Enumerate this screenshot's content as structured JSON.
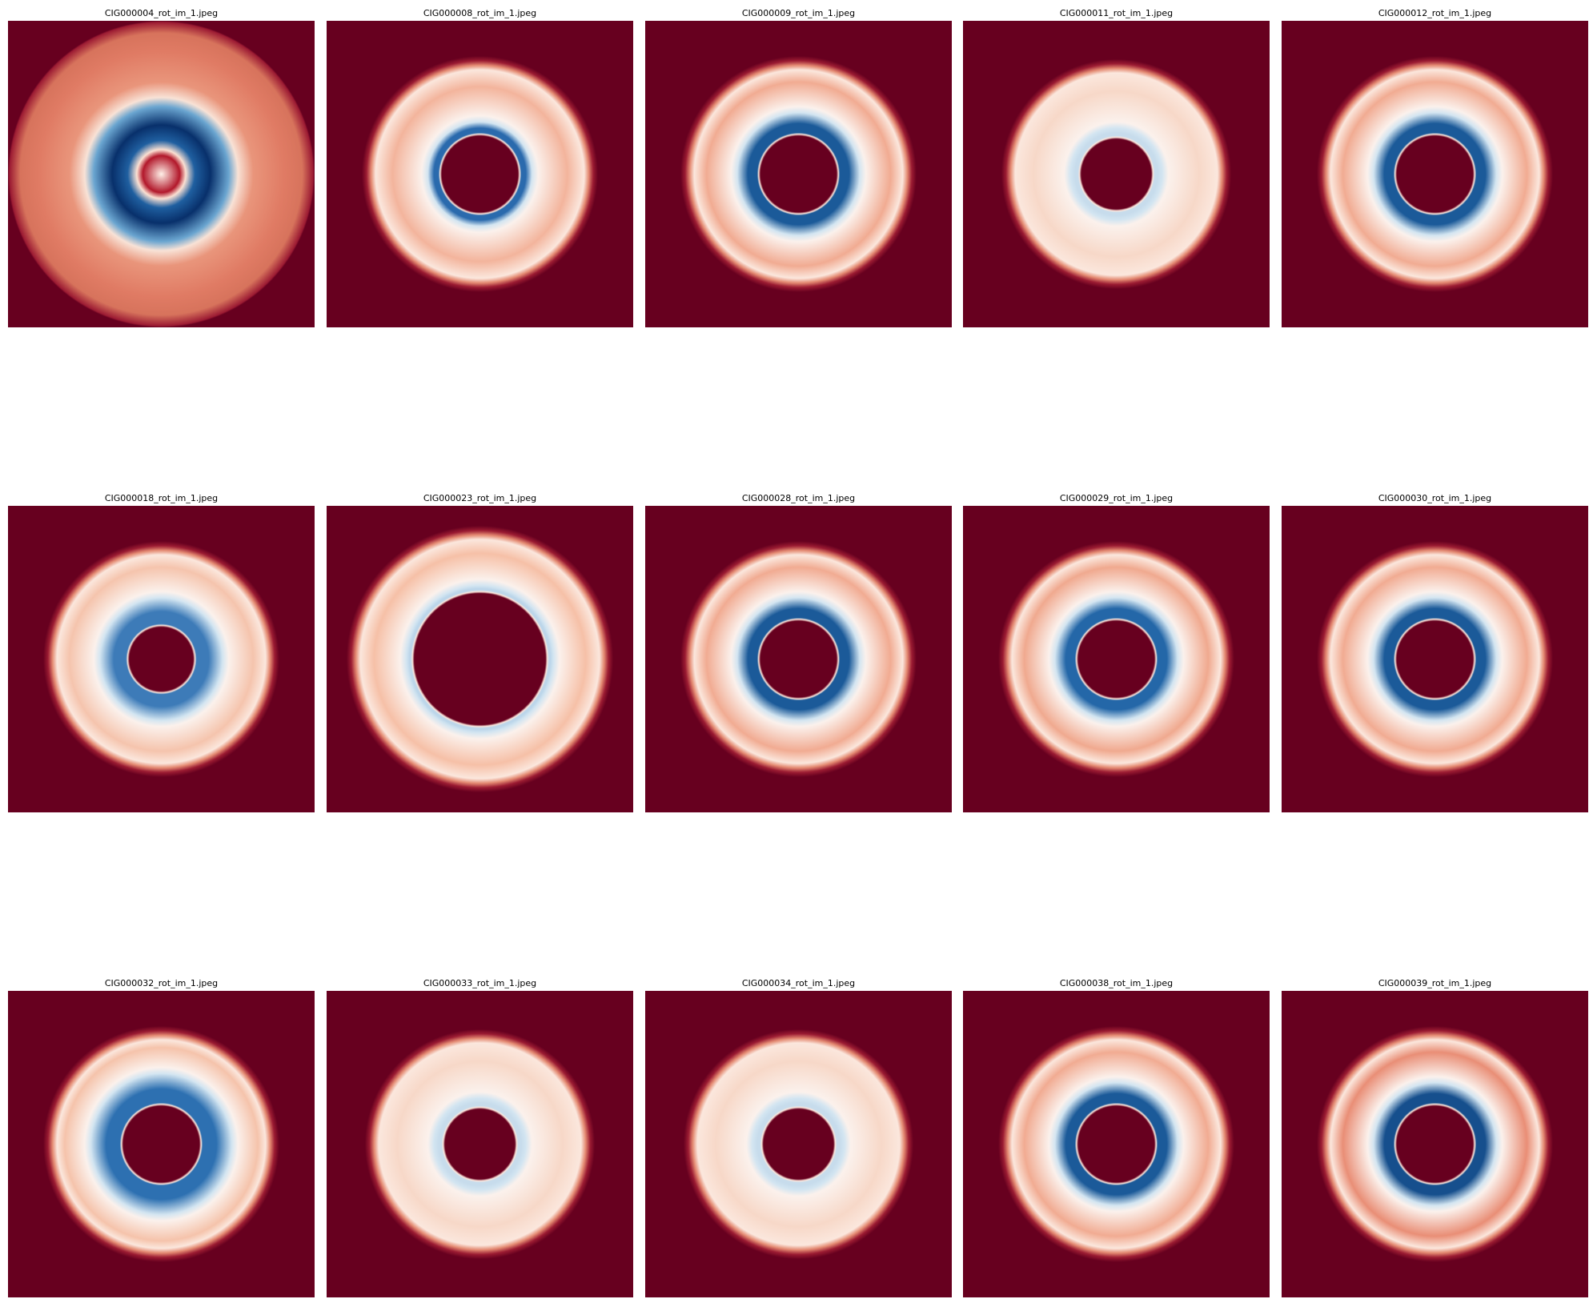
{
  "figure": {
    "background": "#ffffff",
    "colormap": "RdBu",
    "panels": [
      {
        "title": "CIG000004_rot_im_1.jpeg",
        "variant": "filled-center",
        "bg": "#67001f"
      },
      {
        "title": "CIG000008_rot_im_1.jpeg",
        "variant": "thin-blue-ring",
        "bg": "#67001f"
      },
      {
        "title": "CIG000009_rot_im_1.jpeg",
        "variant": "blue-ring",
        "bg": "#67001f"
      },
      {
        "title": "CIG000011_rot_im_1.jpeg",
        "variant": "pale-ring",
        "bg": "#67001f"
      },
      {
        "title": "CIG000012_rot_im_1.jpeg",
        "variant": "blue-ring",
        "bg": "#67001f"
      },
      {
        "title": "CIG000018_rot_im_1.jpeg",
        "variant": "soft-blue-ring",
        "bg": "#67001f"
      },
      {
        "title": "CIG000023_rot_im_1.jpeg",
        "variant": "large-hole",
        "bg": "#67001f"
      },
      {
        "title": "CIG000028_rot_im_1.jpeg",
        "variant": "blue-ring",
        "bg": "#67001f"
      },
      {
        "title": "CIG000029_rot_im_1.jpeg",
        "variant": "blue-ring-soft-edge",
        "bg": "#67001f"
      },
      {
        "title": "CIG000030_rot_im_1.jpeg",
        "variant": "blue-ring",
        "bg": "#67001f"
      },
      {
        "title": "CIG000032_rot_im_1.jpeg",
        "variant": "wide-blue-ring",
        "bg": "#67001f"
      },
      {
        "title": "CIG000033_rot_im_1.jpeg",
        "variant": "pale-ring",
        "bg": "#67001f"
      },
      {
        "title": "CIG000034_rot_im_1.jpeg",
        "variant": "pale-ring",
        "bg": "#67001f"
      },
      {
        "title": "CIG000038_rot_im_1.jpeg",
        "variant": "blue-ring",
        "bg": "#67001f"
      },
      {
        "title": "CIG000039_rot_im_1.jpeg",
        "variant": "blue-ring-dark-outer",
        "bg": "#67001f"
      }
    ]
  }
}
